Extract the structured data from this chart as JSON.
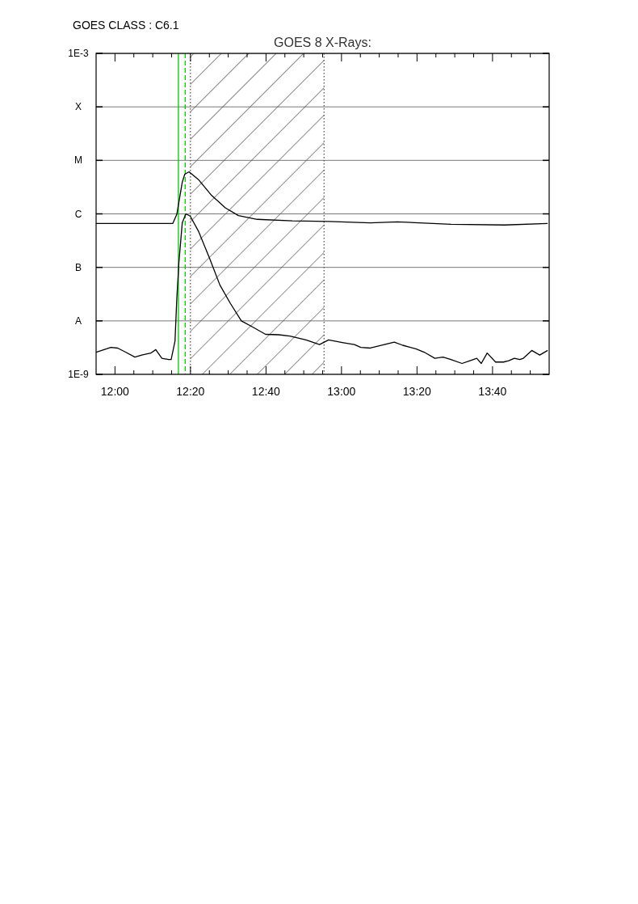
{
  "chart_data": {
    "type": "line",
    "title": "GOES 8 X-Rays:",
    "subtitle": "GOES CLASS : C6.1",
    "log": true,
    "grid": "y",
    "marker": "none",
    "line_style": "solid",
    "xlim": [
      11.9167,
      13.9167
    ],
    "xticks": [
      {
        "value": 12,
        "label": "12:00"
      },
      {
        "value": 12.0833,
        "label": null
      },
      {
        "value": 12.1667,
        "label": null
      },
      {
        "value": 12.25,
        "label": null
      },
      {
        "value": 12.3333,
        "label": "12:20"
      },
      {
        "value": 12.4167,
        "label": null
      },
      {
        "value": 12.5,
        "label": null
      },
      {
        "value": 12.5833,
        "label": null
      },
      {
        "value": 12.6667,
        "label": "12:40"
      },
      {
        "value": 12.75,
        "label": null
      },
      {
        "value": 12.8333,
        "label": null
      },
      {
        "value": 12.9167,
        "label": null
      },
      {
        "value": 13,
        "label": "13:00"
      },
      {
        "value": 13.0833,
        "label": null
      },
      {
        "value": 13.1667,
        "label": null
      },
      {
        "value": 13.25,
        "label": null
      },
      {
        "value": 13.3333,
        "label": "13:20"
      },
      {
        "value": 13.4167,
        "label": null
      },
      {
        "value": 13.5,
        "label": null
      },
      {
        "value": 13.5833,
        "label": null
      },
      {
        "value": 13.6667,
        "label": "13:40"
      },
      {
        "value": 13.75,
        "label": null
      },
      {
        "value": 13.8333,
        "label": null
      }
    ],
    "ylim": [
      1e-09,
      0.001
    ],
    "yticks": [
      {
        "value": 1e-09,
        "label": "1E-9"
      },
      {
        "value": 1e-08,
        "label": "A"
      },
      {
        "value": 1e-07,
        "label": "B"
      },
      {
        "value": 1e-06,
        "label": "C"
      },
      {
        "value": 1e-05,
        "label": "M"
      },
      {
        "value": 0.0001,
        "label": "X"
      },
      {
        "value": 0.001,
        "label": "1E-3"
      }
    ],
    "ref_lines": [
      {
        "axis": "x",
        "value": 12.28,
        "color": "#00cc00",
        "line_style": "solid"
      },
      {
        "axis": "x",
        "value": 12.31,
        "color": "#00cc00",
        "line_style": "dashed"
      },
      {
        "axis": "x",
        "value": 12.333,
        "color": "#555555",
        "line_style": "dotted"
      },
      {
        "axis": "x",
        "value": 12.923,
        "color": "#555555",
        "line_style": "dotted"
      }
    ],
    "bands": [
      {
        "axis": "x",
        "from": 12.333,
        "to": 12.923,
        "color": "#000000"
      }
    ],
    "series": [
      {
        "color": "#000000",
        "x": [
          11.917,
          12.047,
          12.158,
          12.255,
          12.273,
          12.297,
          12.308,
          12.327,
          12.368,
          12.427,
          12.487,
          12.545,
          12.628,
          12.783,
          12.943,
          13.127,
          13.247,
          13.483,
          13.72,
          13.91
        ],
        "values": [
          6.6e-07,
          6.6e-07,
          6.6e-07,
          6.6e-07,
          9.8e-07,
          3.9e-06,
          5.5e-06,
          6.1e-06,
          4.4e-06,
          2.2e-06,
          1.3e-06,
          9.3e-07,
          7.9e-07,
          7.4e-07,
          7.2e-07,
          6.8e-07,
          7.1e-07,
          6.4e-07,
          6.2e-07,
          6.6e-07
        ]
      },
      {
        "color": "#000000",
        "x": [
          11.917,
          11.952,
          11.982,
          12.012,
          12.047,
          12.088,
          12.118,
          12.158,
          12.18,
          12.207,
          12.237,
          12.248,
          12.265,
          12.273,
          12.282,
          12.297,
          12.313,
          12.332,
          12.368,
          12.417,
          12.463,
          12.51,
          12.558,
          12.605,
          12.665,
          12.723,
          12.772,
          12.843,
          12.903,
          12.943,
          13.008,
          13.057,
          13.085,
          13.127,
          13.233,
          13.27,
          13.328,
          13.365,
          13.412,
          13.448,
          13.483,
          13.532,
          13.567,
          13.597,
          13.617,
          13.643,
          13.68,
          13.715,
          13.738,
          13.763,
          13.787,
          13.803,
          13.84,
          13.875,
          13.91
        ],
        "values": [
          2.6e-09,
          2.9e-09,
          3.2e-09,
          3.1e-09,
          2.6e-09,
          2.1e-09,
          2.3e-09,
          2.5e-09,
          2.9e-09,
          2e-09,
          1.9e-09,
          1.9e-09,
          4.2e-09,
          2.6e-08,
          1.2e-07,
          6.8e-07,
          1e-06,
          9.1e-07,
          4.8e-07,
          1.5e-07,
          4.7e-08,
          2.1e-08,
          1e-08,
          7.8e-09,
          5.6e-09,
          5.5e-09,
          5.2e-09,
          4.4e-09,
          3.6e-09,
          4.4e-09,
          3.9e-09,
          3.6e-09,
          3.2e-09,
          3.1e-09,
          4e-09,
          3.5e-09,
          3e-09,
          2.6e-09,
          2e-09,
          2.1e-09,
          1.9e-09,
          1.6e-09,
          1.8e-09,
          2e-09,
          1.6e-09,
          2.5e-09,
          1.7e-09,
          1.7e-09,
          1.8e-09,
          2e-09,
          1.9e-09,
          2e-09,
          2.8e-09,
          2.3e-09,
          2.8e-09
        ]
      }
    ]
  }
}
